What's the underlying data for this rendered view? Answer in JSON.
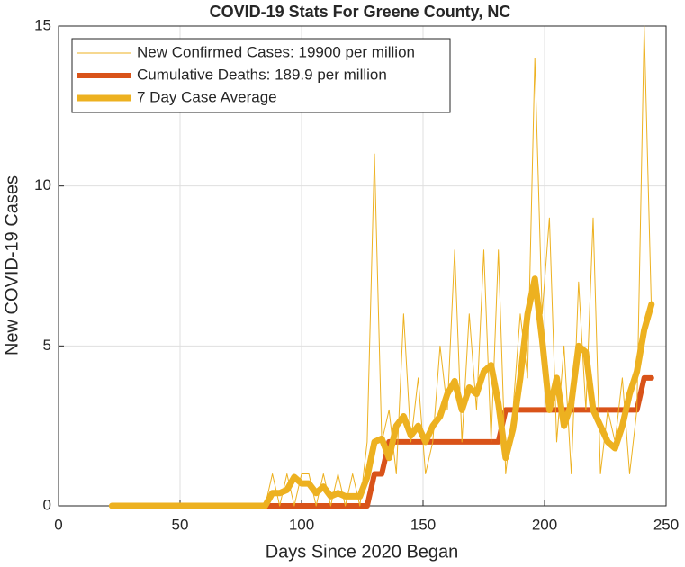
{
  "chart_data": {
    "type": "line",
    "title": "COVID-19 Stats For Greene County, NC",
    "xlabel": "Days Since 2020 Began",
    "ylabel": "New COVID-19 Cases",
    "x": [
      22,
      25,
      28,
      31,
      34,
      37,
      40,
      43,
      46,
      49,
      52,
      55,
      58,
      61,
      64,
      67,
      70,
      73,
      76,
      79,
      82,
      85,
      88,
      91,
      94,
      97,
      100,
      103,
      106,
      109,
      112,
      115,
      118,
      121,
      124,
      127,
      130,
      133,
      136,
      139,
      142,
      145,
      148,
      151,
      154,
      157,
      160,
      163,
      166,
      169,
      172,
      175,
      178,
      181,
      184,
      187,
      190,
      193,
      196,
      199,
      202,
      205,
      208,
      211,
      214,
      217,
      220,
      223,
      226,
      229,
      232,
      235,
      238,
      241,
      244
    ],
    "series": [
      {
        "name": "New Confirmed Cases: 19900 per million",
        "color": "#EDB120",
        "width": 1,
        "values": [
          0,
          0,
          0,
          0,
          0,
          0,
          0,
          0,
          0,
          0,
          0,
          0,
          0,
          0,
          0,
          0,
          0,
          0,
          0,
          0,
          0,
          0,
          1,
          0,
          1,
          0,
          1,
          1,
          0,
          1,
          0,
          1,
          0,
          1,
          0,
          2,
          11,
          2,
          3,
          1,
          6,
          2,
          4,
          1,
          2,
          5,
          3,
          8,
          2,
          6,
          3,
          8,
          2,
          8,
          1,
          3,
          6,
          4,
          14,
          6,
          9,
          2,
          5,
          1,
          7,
          3,
          9,
          1,
          3,
          2,
          4,
          1,
          3,
          15,
          6
        ]
      },
      {
        "name": "Cumulative Deaths: 189.9 per million",
        "color": "#D95319",
        "width": 6,
        "values": [
          0,
          0,
          0,
          0,
          0,
          0,
          0,
          0,
          0,
          0,
          0,
          0,
          0,
          0,
          0,
          0,
          0,
          0,
          0,
          0,
          0,
          0,
          0,
          0,
          0,
          0,
          0,
          0,
          0,
          0,
          0,
          0,
          0,
          0,
          0,
          0,
          1,
          1,
          2,
          2,
          2,
          2,
          2,
          2,
          2,
          2,
          2,
          2,
          2,
          2,
          2,
          2,
          2,
          2,
          3,
          3,
          3,
          3,
          3,
          3,
          3,
          3,
          3,
          3,
          3,
          3,
          3,
          3,
          3,
          3,
          3,
          3,
          3,
          4,
          4
        ]
      },
      {
        "name": "7 Day Case Average",
        "color": "#EDB120",
        "width": 7,
        "values": [
          0,
          0,
          0,
          0,
          0,
          0,
          0,
          0,
          0,
          0,
          0,
          0,
          0,
          0,
          0,
          0,
          0,
          0,
          0,
          0,
          0,
          0,
          0.4,
          0.4,
          0.5,
          0.9,
          0.7,
          0.7,
          0.4,
          0.6,
          0.3,
          0.4,
          0.3,
          0.3,
          0.3,
          0.9,
          2.0,
          2.1,
          1.5,
          2.5,
          2.8,
          2.2,
          2.5,
          2.0,
          2.5,
          2.8,
          3.5,
          3.9,
          3.0,
          3.7,
          3.5,
          4.2,
          4.4,
          3.2,
          1.5,
          2.4,
          4.0,
          6.0,
          7.1,
          5.2,
          3.0,
          4.0,
          2.5,
          3.2,
          5.0,
          4.8,
          3.0,
          2.5,
          2.0,
          1.8,
          2.5,
          3.5,
          4.2,
          5.5,
          6.3
        ]
      }
    ],
    "xlim": [
      0,
      250
    ],
    "xticks": [
      0,
      50,
      100,
      150,
      200,
      250
    ],
    "ylim": [
      0,
      15
    ],
    "yticks": [
      0,
      5,
      10,
      15
    ],
    "grid": true,
    "legend": "upper left"
  }
}
